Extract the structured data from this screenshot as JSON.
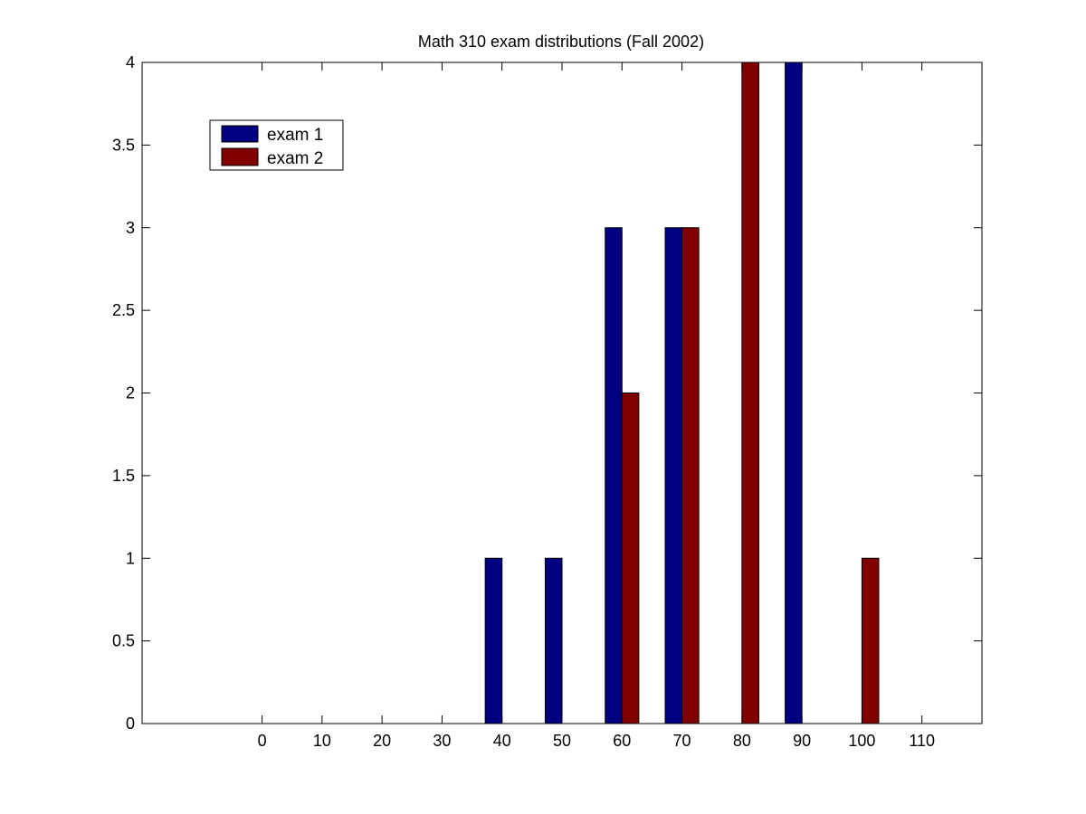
{
  "chart_data": {
    "type": "bar",
    "title": "Math 310 exam distributions (Fall 2002)",
    "xlabel": "",
    "ylabel": "",
    "x_ticks": [
      0,
      10,
      20,
      30,
      40,
      50,
      60,
      70,
      80,
      90,
      100,
      110
    ],
    "y_ticks": [
      "0",
      "0.5",
      "1",
      "1.5",
      "2",
      "2.5",
      "3",
      "3.5",
      "4"
    ],
    "xlim": [
      -20,
      120
    ],
    "ylim": [
      0,
      4
    ],
    "grid": false,
    "legend_position": "top-left",
    "series": [
      {
        "name": "exam 1",
        "color": "#000080",
        "points": [
          {
            "x": 40,
            "y": 1
          },
          {
            "x": 50,
            "y": 1
          },
          {
            "x": 60,
            "y": 3
          },
          {
            "x": 70,
            "y": 3
          },
          {
            "x": 90,
            "y": 4
          }
        ]
      },
      {
        "name": "exam 2",
        "color": "#800000",
        "points": [
          {
            "x": 60,
            "y": 2
          },
          {
            "x": 70,
            "y": 3
          },
          {
            "x": 80,
            "y": 4
          },
          {
            "x": 100,
            "y": 1
          }
        ]
      }
    ]
  }
}
